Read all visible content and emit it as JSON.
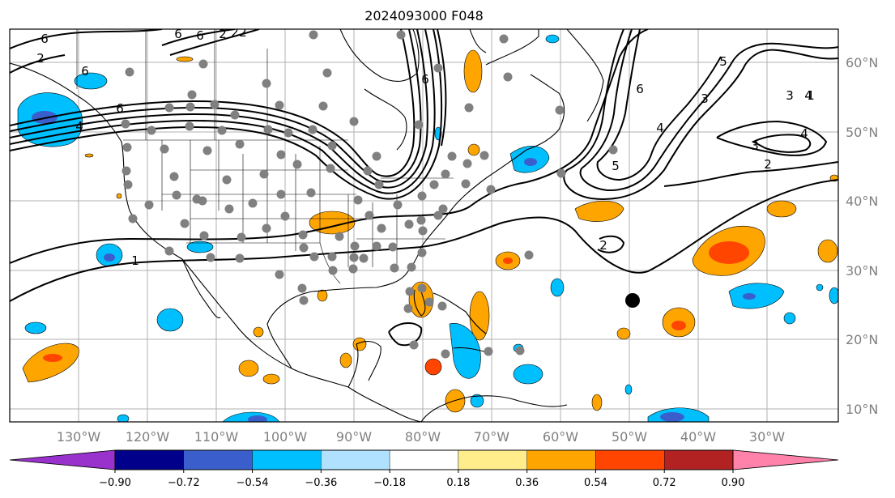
{
  "title": "2024093000 F048",
  "map": {
    "lon_labels": [
      "130°W",
      "120°W",
      "110°W",
      "100°W",
      "90°W",
      "80°W",
      "70°W",
      "60°W",
      "50°W",
      "40°W",
      "30°W"
    ],
    "lat_labels": [
      "60°N",
      "50°N",
      "40°N",
      "30°N",
      "20°N",
      "10°N"
    ],
    "label_color": "#808080",
    "grid_color": "#b0b0b0",
    "contour_labels": [
      "6",
      "6",
      "6",
      "4",
      "6",
      "6",
      "6",
      "5",
      "4",
      "3",
      "6",
      "5",
      "4",
      "3",
      "2",
      "1",
      "2",
      "1",
      "4",
      "3",
      "2",
      "2",
      "2",
      "2"
    ]
  },
  "colorbar": {
    "colors": [
      "#9932cc",
      "#00008b",
      "#3a5fcd",
      "#00bfff",
      "#b0e2ff",
      "#ffffff",
      "#ffec8b",
      "#ffa500",
      "#ff4500",
      "#b22222",
      "#ff82ab"
    ],
    "tick_labels": [
      "−0.90",
      "−0.72",
      "−0.54",
      "−0.36",
      "−0.18",
      "0.18",
      "0.36",
      "0.54",
      "0.72",
      "0.90"
    ]
  }
}
